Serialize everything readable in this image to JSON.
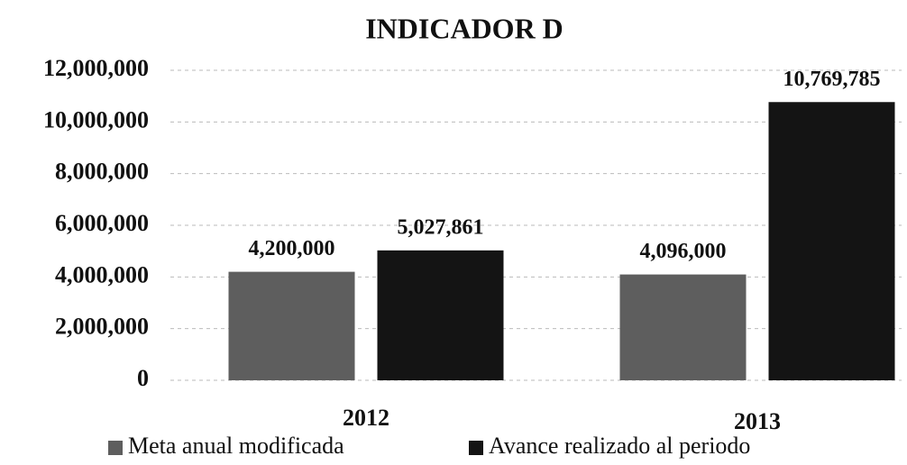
{
  "chart_data": {
    "type": "bar",
    "title": "INDICADOR D",
    "categories": [
      "2012",
      "2013"
    ],
    "series": [
      {
        "name": "Meta anual modificada",
        "color": "#5e5e5e",
        "values": [
          4200000,
          4096000
        ],
        "value_labels": [
          "4,200,000",
          "4,096,000"
        ]
      },
      {
        "name": "Avance realizado al periodo",
        "color": "#141414",
        "values": [
          5027861,
          10769785
        ],
        "value_labels": [
          "5,027,861",
          "10,769,785"
        ]
      }
    ],
    "ylim": [
      0,
      12000000
    ],
    "yticks": [
      0,
      {
        "value": 2000000,
        "label": "2,000,000"
      },
      {
        "value": 4000000,
        "label": "4,000,000"
      },
      {
        "value": 6000000,
        "label": "6,000,000"
      },
      {
        "value": 8000000,
        "label": "8,000,000"
      },
      {
        "value": 10000000,
        "label": "10,000,000"
      },
      {
        "value": 12000000,
        "label": "12,000,000"
      }
    ],
    "grid": true,
    "legend": "bottom"
  }
}
